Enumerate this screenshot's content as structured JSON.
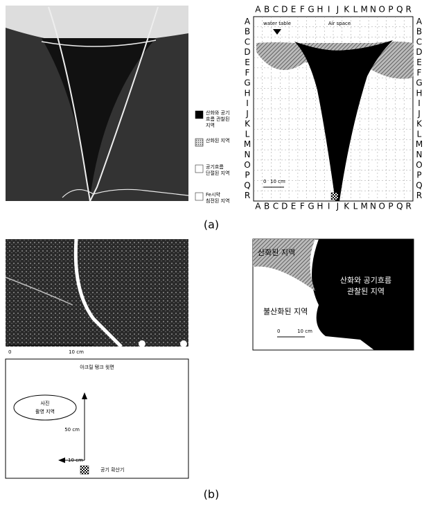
{
  "panel_a": {
    "grid_columns": [
      "A",
      "B",
      "C",
      "D",
      "E",
      "F",
      "G",
      "H",
      "I",
      "J",
      "K",
      "L",
      "M",
      "N",
      "O",
      "P",
      "Q",
      "R"
    ],
    "grid_rows": [
      "A",
      "B",
      "C",
      "D",
      "E",
      "F",
      "G",
      "H",
      "I",
      "J",
      "K",
      "L",
      "M",
      "N",
      "O",
      "P",
      "Q",
      "R"
    ],
    "water_table": "water table",
    "air_space": "Air space",
    "scale": {
      "zero": "0",
      "length": "10 cm"
    },
    "legend": [
      [
        "산화와 공기",
        "흐름 관찰된",
        "지역"
      ],
      [
        "산화된 지역"
      ],
      [
        "공기흐름",
        "단절된 지역"
      ],
      [
        "Fe시약",
        "침전된 지역"
      ]
    ],
    "caption": "(a)"
  },
  "panel_b": {
    "photo_scale": {
      "zero": "0",
      "length": "10 cm"
    },
    "map_labels": {
      "oxidized": "산화된 지역",
      "airflow": [
        "산화와 공기흐름",
        "관찰된 지역"
      ],
      "unoxidized": "불산화된 지역"
    },
    "map_scale": {
      "zero": "0",
      "length": "10 cm"
    },
    "diagram": {
      "title": "아크릴 탱크 윗면",
      "photo_area": [
        "사진",
        "촬영 지역"
      ],
      "vertical": "50 cm",
      "horizontal": "10 cm",
      "diffuser": "공기 확산기"
    },
    "caption": "(b)"
  }
}
